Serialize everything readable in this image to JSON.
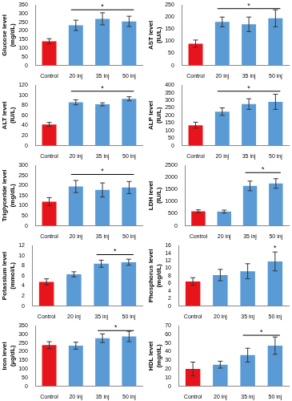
{
  "chart_data": [
    {
      "type": "bar",
      "y_label": [
        "Glucose level",
        "(mg/dL)"
      ],
      "categories": [
        "Control",
        "20 inj",
        "35 inj",
        "50 inj"
      ],
      "values": [
        140,
        232,
        270,
        255
      ],
      "errors": [
        15,
        30,
        35,
        30
      ],
      "colors": [
        "#e8141b",
        "#5b9bd5",
        "#5b9bd5",
        "#5b9bd5"
      ],
      "ylim": [
        0,
        350
      ],
      "yticks": [
        0,
        50,
        100,
        150,
        200,
        250,
        300,
        350
      ],
      "grid": false,
      "annotations": [
        {
          "text": "*",
          "from": "20 inj",
          "to": "50 inj",
          "y": 322
        }
      ]
    },
    {
      "type": "bar",
      "y_label": [
        "AST level",
        "(IU/L)"
      ],
      "categories": [
        "Control",
        "20 inj",
        "35 inj",
        "50 inj"
      ],
      "values": [
        90,
        180,
        170,
        195
      ],
      "errors": [
        15,
        20,
        30,
        35
      ],
      "colors": [
        "#e8141b",
        "#5b9bd5",
        "#5b9bd5",
        "#5b9bd5"
      ],
      "ylim": [
        0,
        250
      ],
      "yticks": [
        0,
        50,
        100,
        150,
        200,
        250
      ],
      "grid": false,
      "annotations": [
        {
          "text": "*",
          "from": "20 inj",
          "to": "50 inj",
          "y": 235
        }
      ]
    },
    {
      "type": "bar",
      "y_label": [
        "ALT level",
        "(IU/L)"
      ],
      "categories": [
        "Control",
        "20 inj",
        "35 inj",
        "50 inj"
      ],
      "values": [
        42,
        86,
        82,
        93
      ],
      "errors": [
        4,
        5,
        3,
        4
      ],
      "colors": [
        "#e8141b",
        "#5b9bd5",
        "#5b9bd5",
        "#5b9bd5"
      ],
      "ylim": [
        0,
        120
      ],
      "yticks": [
        0,
        20,
        40,
        60,
        80,
        100,
        120
      ],
      "grid": false,
      "annotations": [
        {
          "text": "*",
          "from": "20 inj",
          "to": "50 inj",
          "y": 108
        }
      ]
    },
    {
      "type": "bar",
      "y_label": [
        "ALP level",
        "(IU/L)"
      ],
      "categories": [
        "Control",
        "20 inj",
        "35 inj",
        "50 inj"
      ],
      "values": [
        135,
        225,
        275,
        290
      ],
      "errors": [
        20,
        25,
        35,
        50
      ],
      "colors": [
        "#e8141b",
        "#5b9bd5",
        "#5b9bd5",
        "#5b9bd5"
      ],
      "ylim": [
        0,
        400
      ],
      "yticks": [
        0,
        50,
        100,
        150,
        200,
        250,
        300,
        350,
        400
      ],
      "grid": false,
      "annotations": [
        {
          "text": "*",
          "from": "20 inj",
          "to": "50 inj",
          "y": 360
        }
      ]
    },
    {
      "type": "bar",
      "y_label": [
        "Triglyceride level",
        "(mg/dL)"
      ],
      "categories": [
        "Control",
        "20 inj",
        "35 inj",
        "50 inj"
      ],
      "values": [
        120,
        195,
        178,
        190
      ],
      "errors": [
        20,
        30,
        35,
        30
      ],
      "colors": [
        "#e8141b",
        "#5b9bd5",
        "#5b9bd5",
        "#5b9bd5"
      ],
      "ylim": [
        0,
        300
      ],
      "yticks": [
        0,
        50,
        100,
        150,
        200,
        250,
        300
      ],
      "grid": false,
      "annotations": [
        {
          "text": "*",
          "from": "20 inj",
          "to": "50 inj",
          "y": 255
        }
      ]
    },
    {
      "type": "bar",
      "y_label": [
        "LDH level",
        "(IU/L)"
      ],
      "categories": [
        "Control",
        "20 inj",
        "35 inj",
        "50 inj"
      ],
      "values": [
        600,
        590,
        1650,
        1750
      ],
      "errors": [
        60,
        60,
        200,
        200
      ],
      "colors": [
        "#e8141b",
        "#5b9bd5",
        "#5b9bd5",
        "#5b9bd5"
      ],
      "ylim": [
        0,
        2500
      ],
      "yticks": [
        0,
        500,
        1000,
        1500,
        2000,
        2500
      ],
      "grid": false,
      "annotations": [
        {
          "text": "*",
          "from": "35 inj",
          "to": "50 inj",
          "y": 2200
        }
      ]
    },
    {
      "type": "bar",
      "y_label": [
        "Potassium level",
        "(mmol/L)"
      ],
      "categories": [
        "Control",
        "20 inj",
        "35 inj",
        "50 inj"
      ],
      "values": [
        4.8,
        6.3,
        8.4,
        8.7
      ],
      "errors": [
        0.6,
        0.5,
        0.7,
        0.6
      ],
      "colors": [
        "#e8141b",
        "#5b9bd5",
        "#5b9bd5",
        "#5b9bd5"
      ],
      "ylim": [
        0,
        12
      ],
      "yticks": [
        0,
        2,
        4,
        6,
        8,
        10,
        12
      ],
      "grid": false,
      "annotations": [
        {
          "text": "*",
          "from": "35 inj",
          "to": "50 inj",
          "y": 10.2
        }
      ]
    },
    {
      "type": "bar",
      "y_label": [
        "Phosphorus level",
        "(mg/dL)"
      ],
      "categories": [
        "Control",
        "20 inj",
        "35 inj",
        "50 inj"
      ],
      "values": [
        6.5,
        8.2,
        9.2,
        11.8
      ],
      "errors": [
        1,
        1.5,
        2,
        2.5
      ],
      "colors": [
        "#e8141b",
        "#5b9bd5",
        "#5b9bd5",
        "#5b9bd5"
      ],
      "ylim": [
        0,
        16
      ],
      "yticks": [
        0,
        2,
        4,
        6,
        8,
        10,
        12,
        14,
        16
      ],
      "grid": false,
      "annotations": [
        {
          "text": "*",
          "from": "50 inj",
          "to": "50 inj",
          "y": 14.5
        }
      ]
    },
    {
      "type": "bar",
      "y_label": [
        "Iron level",
        "(µg/dL)"
      ],
      "categories": [
        "Control",
        "20 inj",
        "35 inj",
        "50 inj"
      ],
      "values": [
        238,
        235,
        278,
        288
      ],
      "errors": [
        20,
        20,
        25,
        30
      ],
      "colors": [
        "#e8141b",
        "#5b9bd5",
        "#5b9bd5",
        "#5b9bd5"
      ],
      "ylim": [
        0,
        350
      ],
      "yticks": [
        0,
        50,
        100,
        150,
        200,
        250,
        300,
        350
      ],
      "grid": false,
      "annotations": [
        {
          "text": "*",
          "from": "35 inj",
          "to": "50 inj",
          "y": 322
        }
      ]
    },
    {
      "type": "bar",
      "y_label": [
        "HDL level",
        "(mg/dL)"
      ],
      "categories": [
        "Control",
        "20 inj",
        "35 inj",
        "50 inj"
      ],
      "values": [
        20,
        25,
        36,
        47
      ],
      "errors": [
        8,
        4,
        8,
        10
      ],
      "colors": [
        "#e8141b",
        "#5b9bd5",
        "#5b9bd5",
        "#5b9bd5"
      ],
      "ylim": [
        0,
        70
      ],
      "yticks": [
        0,
        10,
        20,
        30,
        40,
        50,
        60,
        70
      ],
      "grid": false,
      "annotations": [
        {
          "text": "*",
          "from": "35 inj",
          "to": "50 inj",
          "y": 59
        }
      ]
    }
  ]
}
